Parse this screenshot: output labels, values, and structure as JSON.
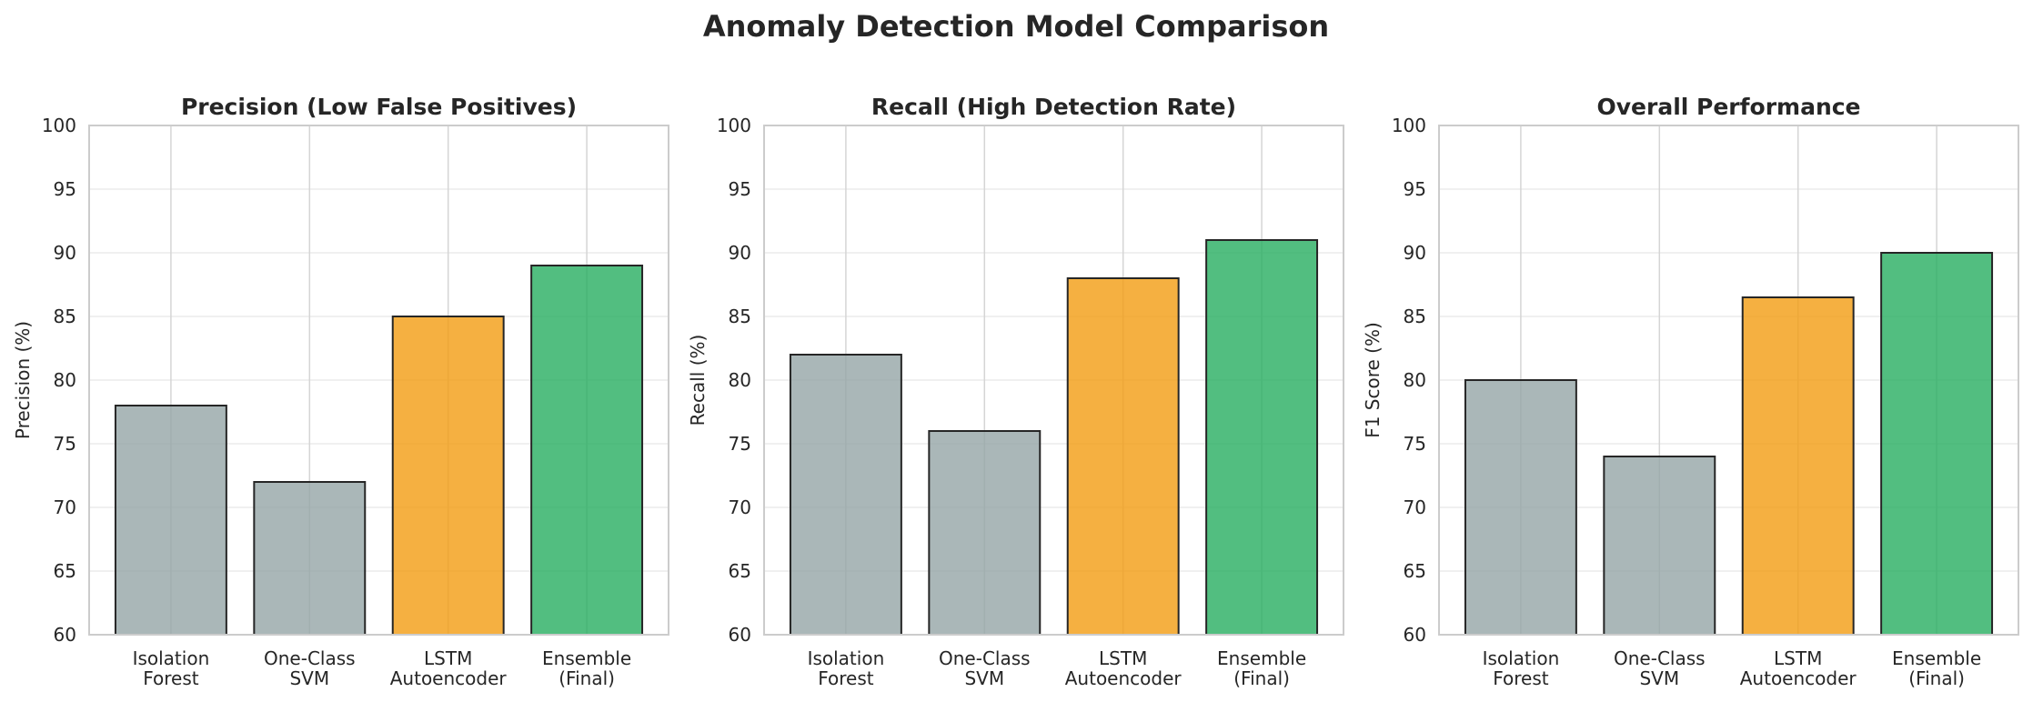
{
  "figure": {
    "title": "Anomaly Detection Model Comparison"
  },
  "colors": {
    "baseline": "#95a5a6",
    "lstm": "#f39c12",
    "ensemble": "#27ae60",
    "edge": "#262626",
    "grid": "#d5d5d5"
  },
  "chart_data": [
    {
      "type": "bar",
      "title": "Precision (Low False Positives)",
      "xlabel": "",
      "ylabel": "Precision (%)",
      "categories": [
        "Isolation\nForest",
        "One-Class\nSVM",
        "LSTM\nAutoencoder",
        "Ensemble\n(Final)"
      ],
      "values": [
        78,
        72,
        85,
        89
      ],
      "ylim": [
        60,
        100
      ],
      "yticks": [
        60,
        65,
        70,
        75,
        80,
        85,
        90,
        95,
        100
      ],
      "grid": true
    },
    {
      "type": "bar",
      "title": "Recall (High Detection Rate)",
      "xlabel": "",
      "ylabel": "Recall (%)",
      "categories": [
        "Isolation\nForest",
        "One-Class\nSVM",
        "LSTM\nAutoencoder",
        "Ensemble\n(Final)"
      ],
      "values": [
        82,
        76,
        88,
        91
      ],
      "ylim": [
        60,
        100
      ],
      "yticks": [
        60,
        65,
        70,
        75,
        80,
        85,
        90,
        95,
        100
      ],
      "grid": true
    },
    {
      "type": "bar",
      "title": "Overall Performance",
      "xlabel": "",
      "ylabel": "F1 Score (%)",
      "categories": [
        "Isolation\nForest",
        "One-Class\nSVM",
        "LSTM\nAutoencoder",
        "Ensemble\n(Final)"
      ],
      "values": [
        80,
        74,
        86.5,
        90
      ],
      "ylim": [
        60,
        100
      ],
      "yticks": [
        60,
        65,
        70,
        75,
        80,
        85,
        90,
        95,
        100
      ],
      "grid": true
    }
  ]
}
